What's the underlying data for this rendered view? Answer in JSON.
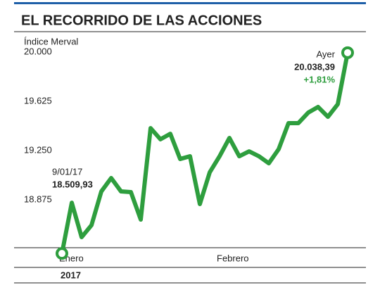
{
  "chart_data": {
    "type": "line",
    "title": "EL RECORRIDO DE LAS ACCIONES",
    "y_label": "Índice Merval",
    "categories": [
      "Enero",
      null,
      null,
      null,
      null,
      null,
      null,
      null,
      null,
      null,
      null,
      null,
      null,
      null,
      null,
      null,
      "Febrero",
      null,
      null,
      null,
      null,
      null,
      null,
      null,
      null,
      null,
      null,
      null,
      null,
      null
    ],
    "values": [
      18509.93,
      18896,
      18634,
      18725,
      18982,
      19084,
      18982,
      18977,
      18768,
      19464,
      19379,
      19421,
      19229,
      19250,
      18886,
      19127,
      19250,
      19389,
      19250,
      19287,
      19250,
      19196,
      19304,
      19502,
      19502,
      19582,
      19625,
      19550,
      19646,
      20038.39
    ],
    "color": "#2e9e3e",
    "ylim": [
      18475,
      20075
    ],
    "yticks": [
      {
        "value": 18875,
        "label": "18.875"
      },
      {
        "value": 19250,
        "label": "19.250"
      },
      {
        "value": 19625,
        "label": "19.625"
      },
      {
        "value": 20000,
        "label": "20.000"
      }
    ],
    "grid": false,
    "annotations": {
      "start_date": "9/01/17",
      "start_value": "18.509,93",
      "end_date": "Ayer",
      "end_value": "20.038,39",
      "end_change": "+1,81%"
    },
    "year": "2017"
  }
}
